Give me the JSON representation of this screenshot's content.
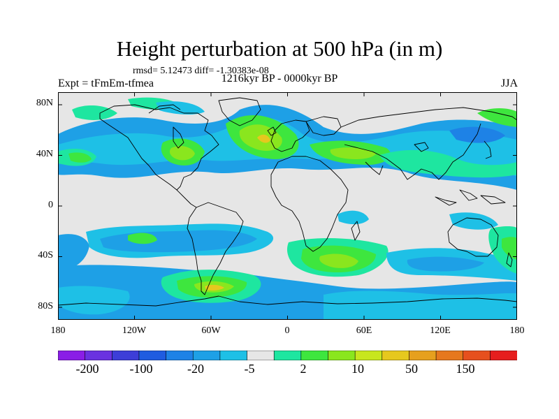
{
  "header": {
    "title": "Height perturbation at 500 hPa (in m)",
    "rmsd_text": "rmsd= 5.12473 diff= -1.30383e-08",
    "period": "1216kyr BP - 0000kyr BP",
    "experiment": "Expt = tFmEm-tfmea",
    "season": "JJA"
  },
  "axes": {
    "lat_ticks": [
      "80N",
      "40N",
      "0",
      "40S",
      "80S"
    ],
    "lon_ticks": [
      "180",
      "120W",
      "60W",
      "0",
      "60E",
      "120E",
      "180"
    ]
  },
  "colorbar": {
    "labels": [
      "-200",
      "-100",
      "-20",
      "-5",
      "2",
      "10",
      "50",
      "150"
    ],
    "colors": [
      "#8a1ee6",
      "#6a32e0",
      "#3d3ed8",
      "#1f5ce0",
      "#1e82e6",
      "#1ea0e6",
      "#1ec0e6",
      "#e6e6e6",
      "#1ee6a0",
      "#3ee63e",
      "#8ae61e",
      "#c8e61e",
      "#e6c81e",
      "#e6a01e",
      "#e6781e",
      "#e6501e",
      "#e61e1e"
    ]
  }
}
